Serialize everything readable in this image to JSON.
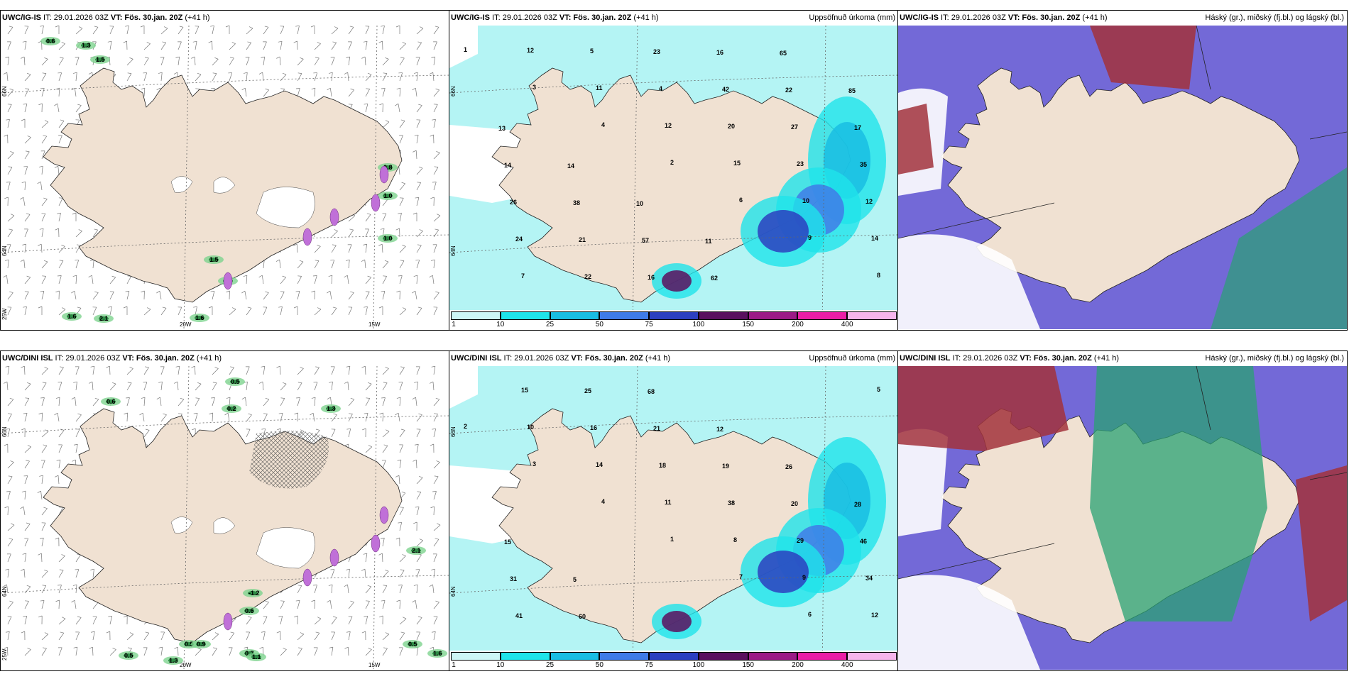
{
  "panels": [
    {
      "id": "p1",
      "model_bold": "UWC/IG-IS",
      "it_label": " IT: 29.01.2026 03Z ",
      "vt_bold": "VT: Fös. 30.jan. 20Z",
      "lead": " (+41 h)",
      "right_title": "",
      "type": "wind",
      "grid_labels": {
        "lat_top": "66N",
        "lat_mid": "64N",
        "lat_bottom": "25W",
        "lon_a": "20W",
        "lon_b": "15W"
      },
      "values": [
        "0.6",
        "1.3",
        "1.5",
        "0.8",
        "1.0",
        "1.0",
        "1.6",
        "2.1",
        "1.6",
        "0.9",
        "1.5"
      ]
    },
    {
      "id": "p2",
      "model_bold": "UWC/IG-IS",
      "it_label": " IT: 29.01.2026 03Z ",
      "vt_bold": "VT: Fös. 30.jan. 20Z",
      "lead": " (+41 h)",
      "right_title": "Uppsöfnuð úrkoma (mm)",
      "type": "precip",
      "grid_labels": {
        "lat_top": "66N",
        "lat_mid": "64N"
      },
      "values": [
        "1",
        "3",
        "4",
        "2",
        "6",
        "9",
        "8",
        "12",
        "11",
        "12",
        "15",
        "10",
        "14",
        "7",
        "5",
        "4",
        "20",
        "23",
        "12",
        "24",
        "22",
        "23",
        "42",
        "27",
        "35",
        "26",
        "21",
        "16",
        "16",
        "22",
        "17",
        "14",
        "38",
        "57",
        "62",
        "65",
        "85",
        "13",
        "14",
        "10",
        "11"
      ]
    },
    {
      "id": "p3",
      "model_bold": "UWC/IG-IS",
      "it_label": " IT: 29.01.2026 03Z ",
      "vt_bold": "VT: Fös. 30.jan. 20Z",
      "lead": " (+41 h)",
      "right_title": "Háský (gr.), miðský (fj.bl.) og lágský (bl.)",
      "type": "cloud"
    },
    {
      "id": "p4",
      "model_bold": "UWC/DINI ISL",
      "it_label": " IT: 29.01.2026 03Z ",
      "vt_bold": "VT: Fös. 30.jan. 20Z",
      "lead": " (+41 h)",
      "right_title": "",
      "type": "wind",
      "grid_labels": {
        "lat_top": "66N",
        "lat_mid": "64N",
        "lat_bottom": "25W",
        "lon_a": "20W",
        "lon_b": "15W"
      },
      "values": [
        "0.5",
        "0.2",
        "0.6",
        "1.3",
        "2.1",
        "-1.2",
        "0.6",
        "0.5",
        "0.9",
        "0.7",
        "1.1",
        "0.5",
        "1.3",
        "0.5",
        "1.6"
      ]
    },
    {
      "id": "p5",
      "model_bold": "UWC/DINI ISL",
      "it_label": " IT: 29.01.2026 03Z ",
      "vt_bold": "VT: Fös. 30.jan. 20Z",
      "lead": " (+41 h)",
      "right_title": "Uppsöfnuð úrkoma (mm)",
      "type": "precip",
      "grid_labels": {
        "lat_top": "66N",
        "lat_mid": "64N"
      },
      "values": [
        "2",
        "3",
        "4",
        "1",
        "7",
        "6",
        "5",
        "10",
        "14",
        "11",
        "8",
        "9",
        "12",
        "15",
        "16",
        "18",
        "38",
        "29",
        "34",
        "41",
        "25",
        "21",
        "19",
        "20",
        "46",
        "31",
        "60",
        "68",
        "12",
        "26",
        "28",
        "15",
        "5"
      ]
    },
    {
      "id": "p6",
      "model_bold": "UWC/DINI ISL",
      "it_label": " IT: 29.01.2026 03Z ",
      "vt_bold": "VT: Fös. 30.jan. 20Z",
      "lead": " (+41 h)",
      "right_title": "Háský (gr.), miðský (fj.bl.) og lágský (bl.)",
      "type": "cloud"
    }
  ],
  "colorbar": {
    "labels": [
      "1",
      "10",
      "25",
      "50",
      "75",
      "100",
      "150",
      "200",
      "400"
    ],
    "colors": [
      "#cdf6f6",
      "#1fe4ea",
      "#19bde3",
      "#3f7be8",
      "#2c3fc0",
      "#5a0f5e",
      "#9c1a86",
      "#ea1ea6",
      "#f6b5ec"
    ]
  },
  "colors": {
    "land": "#f0e1d2",
    "sea_wind": "#ffffff",
    "sea_precip": "#b4f4f4",
    "cloud_low": "#5a4fd0",
    "cloud_high": "#a2323c",
    "cloud_mid": "#2aa173"
  }
}
